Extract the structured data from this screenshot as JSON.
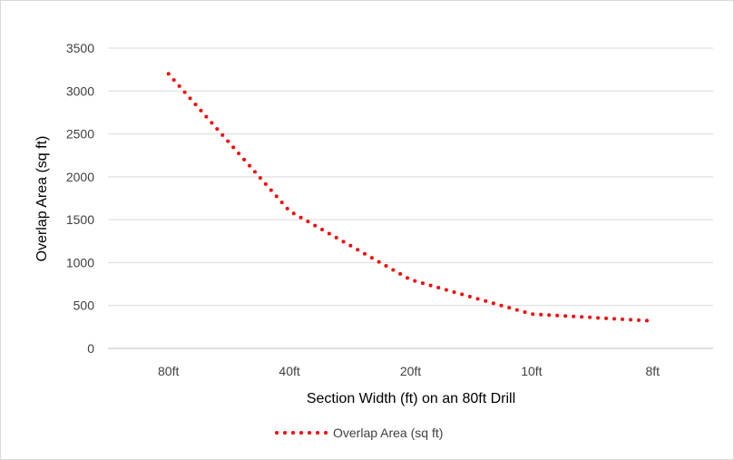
{
  "chart_data": {
    "type": "line",
    "title": "",
    "xlabel": "Section Width (ft) on an 80ft Drill",
    "ylabel": "Overlap Area (sq ft)",
    "categories": [
      "80ft",
      "40ft",
      "20ft",
      "10ft",
      "8ft"
    ],
    "series": [
      {
        "name": "Overlap Area (sq ft)",
        "values": [
          3200,
          1600,
          800,
          400,
          320
        ],
        "color": "#ff0000",
        "style": "dotted"
      }
    ],
    "ylim": [
      0,
      3500
    ],
    "yticks": [
      0,
      500,
      1000,
      1500,
      2000,
      2500,
      3000,
      3500
    ],
    "grid": true,
    "legend": "bottom"
  }
}
